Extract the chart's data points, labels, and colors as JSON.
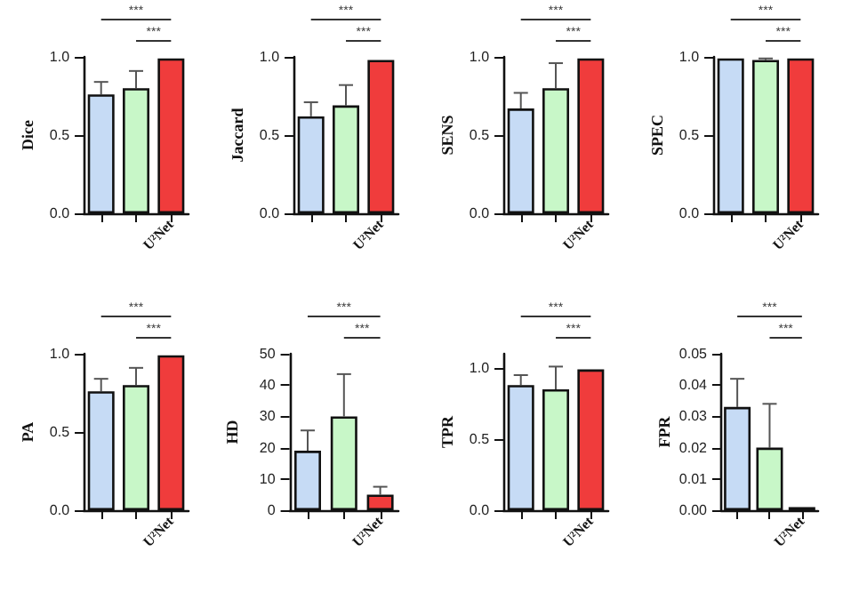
{
  "chart_data": [
    {
      "type": "bar",
      "ylabel": "Dice",
      "categories": [
        null,
        null,
        "U²Net"
      ],
      "values": [
        0.76,
        0.8,
        0.99
      ],
      "colors": [
        "#c6dbf5",
        "#c8f7c8",
        "#f03c3c"
      ],
      "errors": [
        [
          0.76,
          0.84
        ],
        [
          0.8,
          0.91
        ],
        null
      ],
      "ylim": [
        0,
        1
      ],
      "yticks": [
        {
          "value": 0,
          "label": "0.0"
        },
        {
          "value": 0.5,
          "label": "0.5"
        },
        {
          "value": 1,
          "label": "1.0"
        }
      ],
      "annotations": [
        "***",
        "***"
      ]
    },
    {
      "type": "bar",
      "ylabel": "Jaccard",
      "categories": [
        null,
        null,
        "U²Net"
      ],
      "values": [
        0.62,
        0.69,
        0.98
      ],
      "colors": [
        "#c6dbf5",
        "#c8f7c8",
        "#f03c3c"
      ],
      "errors": [
        [
          0.62,
          0.71
        ],
        [
          0.69,
          0.82
        ],
        null
      ],
      "ylim": [
        0,
        1
      ],
      "yticks": [
        {
          "value": 0,
          "label": "0.0"
        },
        {
          "value": 0.5,
          "label": "0.5"
        },
        {
          "value": 1,
          "label": "1.0"
        }
      ],
      "annotations": [
        "***",
        "***"
      ]
    },
    {
      "type": "bar",
      "ylabel": "SENS",
      "categories": [
        null,
        null,
        "U²Net"
      ],
      "values": [
        0.67,
        0.8,
        0.99
      ],
      "colors": [
        "#c6dbf5",
        "#c8f7c8",
        "#f03c3c"
      ],
      "errors": [
        [
          0.67,
          0.77
        ],
        [
          0.8,
          0.96
        ],
        null
      ],
      "ylim": [
        0,
        1
      ],
      "yticks": [
        {
          "value": 0,
          "label": "0.0"
        },
        {
          "value": 0.5,
          "label": "0.5"
        },
        {
          "value": 1,
          "label": "1.0"
        }
      ],
      "annotations": [
        "***",
        "***"
      ]
    },
    {
      "type": "bar",
      "ylabel": "SPEC",
      "categories": [
        null,
        null,
        "U²Net"
      ],
      "values": [
        0.99,
        0.98,
        0.99
      ],
      "colors": [
        "#c6dbf5",
        "#c8f7c8",
        "#f03c3c"
      ],
      "errors": [
        null,
        [
          0.98,
          0.99
        ],
        null
      ],
      "ylim": [
        0,
        1
      ],
      "yticks": [
        {
          "value": 0,
          "label": "0.0"
        },
        {
          "value": 0.5,
          "label": "0.5"
        },
        {
          "value": 1,
          "label": "1.0"
        }
      ],
      "annotations": [
        "***",
        "***"
      ]
    },
    {
      "type": "bar",
      "ylabel": "PA",
      "categories": [
        null,
        null,
        "U²Net"
      ],
      "values": [
        0.76,
        0.8,
        0.99
      ],
      "colors": [
        "#c6dbf5",
        "#c8f7c8",
        "#f03c3c"
      ],
      "errors": [
        [
          0.76,
          0.84
        ],
        [
          0.8,
          0.91
        ],
        null
      ],
      "ylim": [
        0,
        1
      ],
      "yticks": [
        {
          "value": 0,
          "label": "0.0"
        },
        {
          "value": 0.5,
          "label": "0.5"
        },
        {
          "value": 1,
          "label": "1.0"
        }
      ],
      "annotations": [
        "***",
        "***"
      ]
    },
    {
      "type": "bar",
      "ylabel": "HD",
      "categories": [
        null,
        null,
        "U²Net"
      ],
      "values": [
        19,
        30,
        5
      ],
      "colors": [
        "#c6dbf5",
        "#c8f7c8",
        "#f03c3c"
      ],
      "errors": [
        [
          19,
          25.5
        ],
        [
          30,
          43.5
        ],
        [
          5,
          7.5
        ]
      ],
      "ylim": [
        0,
        50
      ],
      "yticks": [
        0,
        10,
        20,
        30,
        40,
        50
      ],
      "annotations": [
        "***",
        "***"
      ]
    },
    {
      "type": "bar",
      "ylabel": "TPR",
      "categories": [
        null,
        null,
        "U²Net"
      ],
      "values": [
        0.88,
        0.85,
        0.99
      ],
      "colors": [
        "#c6dbf5",
        "#c8f7c8",
        "#f03c3c"
      ],
      "errors": [
        [
          0.88,
          0.95
        ],
        [
          0.85,
          1.01
        ],
        null
      ],
      "ylim": [
        0,
        1.1
      ],
      "yticks": [
        {
          "value": 0,
          "label": "0.0"
        },
        {
          "value": 0.5,
          "label": "0.5"
        },
        {
          "value": 1,
          "label": "1.0"
        }
      ],
      "annotations": [
        "***",
        "***"
      ]
    },
    {
      "type": "bar",
      "ylabel": "FPR",
      "categories": [
        null,
        null,
        "U²Net"
      ],
      "values": [
        0.033,
        0.02,
        0.001
      ],
      "colors": [
        "#c6dbf5",
        "#c8f7c8",
        "#f03c3c"
      ],
      "errors": [
        [
          0.033,
          0.042
        ],
        [
          0.02,
          0.034
        ],
        null
      ],
      "ylim": [
        0,
        0.05
      ],
      "yticks": [
        {
          "value": 0,
          "label": "0.00"
        },
        {
          "value": 0.01,
          "label": "0.01"
        },
        {
          "value": 0.02,
          "label": "0.02"
        },
        {
          "value": 0.03,
          "label": "0.03"
        },
        {
          "value": 0.04,
          "label": "0.04"
        },
        {
          "value": 0.05,
          "label": "0.05"
        }
      ],
      "annotations": [
        "***",
        "***"
      ]
    }
  ]
}
